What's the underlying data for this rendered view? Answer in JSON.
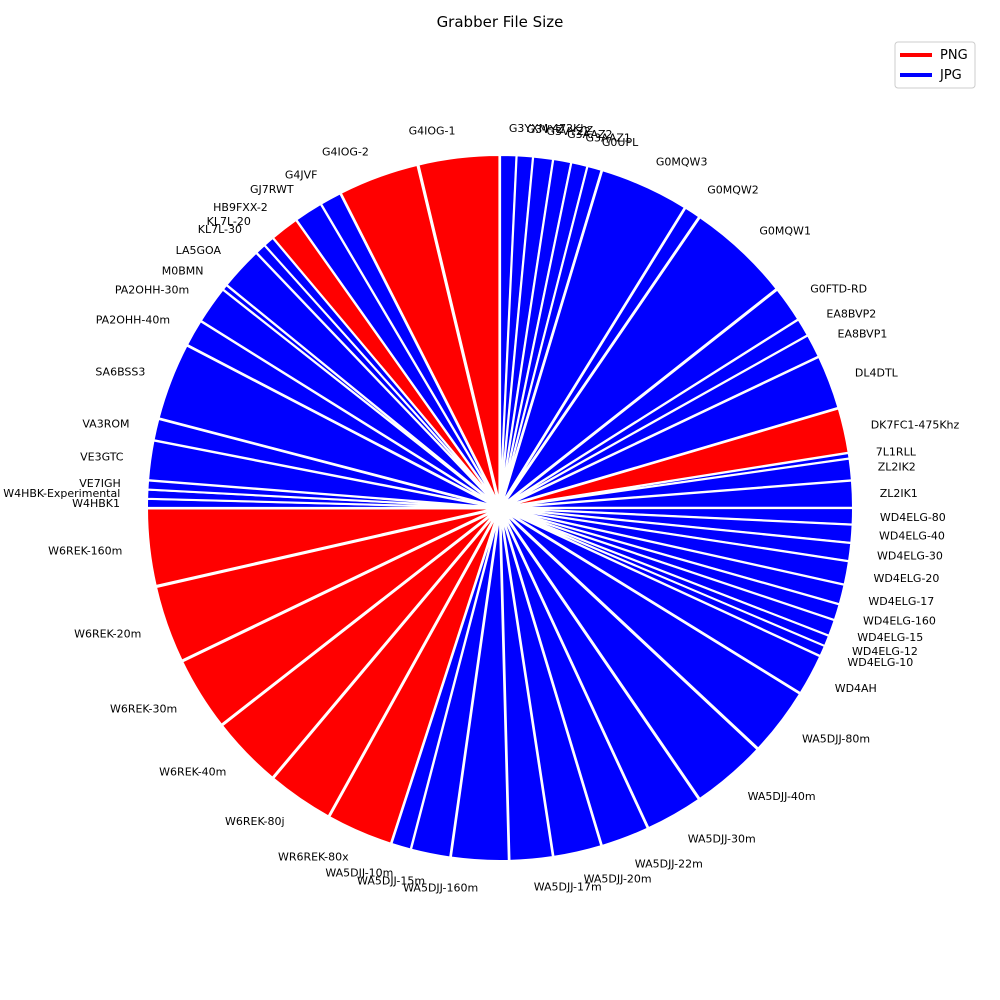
{
  "chart_data": {
    "type": "pie",
    "title": "Grabber File Size",
    "legend": {
      "placement": "top-right",
      "entries": [
        {
          "name": "PNG",
          "color": "#ff0000"
        },
        {
          "name": "JPG",
          "color": "#0000ff"
        }
      ]
    },
    "colors": {
      "PNG": "#ff0000",
      "JPG": "#0000ff"
    },
    "slices": [
      {
        "label": "G3YXM-472Khz",
        "value": 0.9,
        "format": "JPG"
      },
      {
        "label": "G3VYZ",
        "value": 0.9,
        "format": "JPG"
      },
      {
        "label": "G3VYZ2",
        "value": 1.1,
        "format": "JPG"
      },
      {
        "label": "G3AAZ2",
        "value": 1.0,
        "format": "JPG"
      },
      {
        "label": "G3AAZ1",
        "value": 0.9,
        "format": "JPG"
      },
      {
        "label": "G0UPL",
        "value": 0.8,
        "format": "JPG"
      },
      {
        "label": "G0MQW3",
        "value": 5.0,
        "format": "JPG"
      },
      {
        "label": "G0MQW2",
        "value": 0.9,
        "format": "JPG"
      },
      {
        "label": "G0MQW1",
        "value": 5.8,
        "format": "JPG"
      },
      {
        "label": "G0FTD-RD",
        "value": 2.0,
        "format": "JPG"
      },
      {
        "label": "EA8BVP2",
        "value": 1.0,
        "format": "JPG"
      },
      {
        "label": "EA8BVP1",
        "value": 1.3,
        "format": "JPG"
      },
      {
        "label": "DL4DTL",
        "value": 3.0,
        "format": "JPG"
      },
      {
        "label": "DK7FC1-475Khz",
        "value": 2.5,
        "format": "PNG"
      },
      {
        "label": "7L1RLL",
        "value": 0.3,
        "format": "JPG"
      },
      {
        "label": "ZL2IK2",
        "value": 1.2,
        "format": "JPG"
      },
      {
        "label": "ZL2IK1",
        "value": 1.5,
        "format": "JPG"
      },
      {
        "label": "WD4ELG-80",
        "value": 0.9,
        "format": "JPG"
      },
      {
        "label": "WD4ELG-40",
        "value": 1.0,
        "format": "JPG"
      },
      {
        "label": "WD4ELG-30",
        "value": 1.0,
        "format": "JPG"
      },
      {
        "label": "WD4ELG-20",
        "value": 1.3,
        "format": "JPG"
      },
      {
        "label": "WD4ELG-17",
        "value": 1.1,
        "format": "JPG"
      },
      {
        "label": "WD4ELG-160",
        "value": 0.9,
        "format": "JPG"
      },
      {
        "label": "WD4ELG-15",
        "value": 0.9,
        "format": "JPG"
      },
      {
        "label": "WD4ELG-12",
        "value": 0.6,
        "format": "JPG"
      },
      {
        "label": "WD4ELG-10",
        "value": 0.6,
        "format": "JPG"
      },
      {
        "label": "WD4AH",
        "value": 2.3,
        "format": "JPG"
      },
      {
        "label": "WA5DJJ-80m",
        "value": 3.8,
        "format": "JPG"
      },
      {
        "label": "WA5DJJ-40m",
        "value": 4.2,
        "format": "JPG"
      },
      {
        "label": "WA5DJJ-30m",
        "value": 3.2,
        "format": "JPG"
      },
      {
        "label": "WA5DJJ-22m",
        "value": 2.7,
        "format": "JPG"
      },
      {
        "label": "WA5DJJ-20m",
        "value": 2.7,
        "format": "JPG"
      },
      {
        "label": "WA5DJJ-17m",
        "value": 2.4,
        "format": "JPG"
      },
      {
        "label": "WA5DJJ-160m",
        "value": 3.2,
        "format": "JPG"
      },
      {
        "label": "WA5DJJ-15m",
        "value": 2.2,
        "format": "JPG"
      },
      {
        "label": "WA5DJJ-10m",
        "value": 1.1,
        "format": "JPG"
      },
      {
        "label": "WR6REK-80x",
        "value": 3.7,
        "format": "PNG"
      },
      {
        "label": "W6REK-80j",
        "value": 3.7,
        "format": "PNG"
      },
      {
        "label": "W6REK-40m",
        "value": 4.0,
        "format": "PNG"
      },
      {
        "label": "W6REK-30m",
        "value": 4.1,
        "format": "PNG"
      },
      {
        "label": "W6REK-20m",
        "value": 4.3,
        "format": "PNG"
      },
      {
        "label": "W6REK-160m",
        "value": 4.3,
        "format": "PNG"
      },
      {
        "label": "W4HBK1",
        "value": 0.5,
        "format": "JPG"
      },
      {
        "label": "W4HBK-Experimental",
        "value": 0.5,
        "format": "JPG"
      },
      {
        "label": "VE7IGH",
        "value": 0.5,
        "format": "JPG"
      },
      {
        "label": "VE3GTC",
        "value": 2.2,
        "format": "JPG"
      },
      {
        "label": "VA3ROM",
        "value": 1.2,
        "format": "JPG"
      },
      {
        "label": "SA6BSS3",
        "value": 4.3,
        "format": "JPG"
      },
      {
        "label": "PA2OHH-40m",
        "value": 1.5,
        "format": "JPG"
      },
      {
        "label": "PA2OHH-30m",
        "value": 2.1,
        "format": "JPG"
      },
      {
        "label": "M0BMN",
        "value": 0.3,
        "format": "JPG"
      },
      {
        "label": "LA5GOA",
        "value": 2.4,
        "format": "JPG"
      },
      {
        "label": "KL7L-30",
        "value": 0.6,
        "format": "JPG"
      },
      {
        "label": "KL7L-20",
        "value": 0.6,
        "format": "JPG"
      },
      {
        "label": "HB9FXX-2",
        "value": 1.6,
        "format": "PNG"
      },
      {
        "label": "GJ7RWT",
        "value": 1.6,
        "format": "JPG"
      },
      {
        "label": "G4JVF",
        "value": 1.2,
        "format": "JPG"
      },
      {
        "label": "G4IOG-2",
        "value": 4.5,
        "format": "PNG"
      },
      {
        "label": "G4IOG-1",
        "value": 4.5,
        "format": "PNG"
      }
    ]
  }
}
